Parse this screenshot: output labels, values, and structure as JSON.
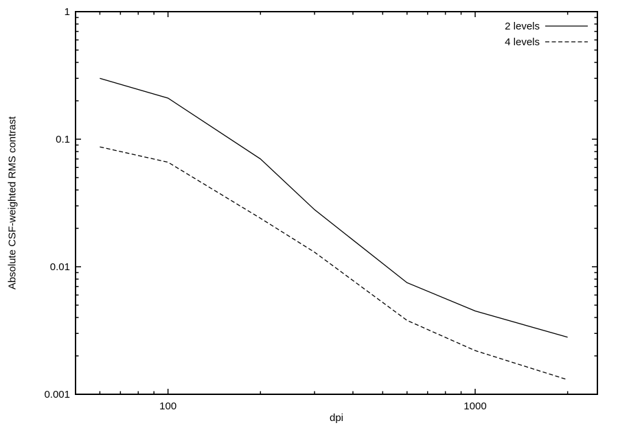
{
  "chart_data": {
    "type": "line",
    "title": "",
    "xlabel": "dpi",
    "ylabel": "Absolute CSF-weighted RMS contrast",
    "x_scale": "log",
    "y_scale": "log",
    "xlim": [
      50,
      2500
    ],
    "ylim": [
      0.001,
      1
    ],
    "grid": false,
    "x_major_ticks": [
      100,
      1000
    ],
    "x_tick_labels": [
      "100",
      "1000"
    ],
    "y_major_ticks": [
      1,
      0.1,
      0.01,
      0.001
    ],
    "y_tick_labels": [
      "1",
      "0.1",
      "0.01",
      "0.001"
    ],
    "legend_position": "top-right-inside",
    "x": [
      60,
      100,
      200,
      300,
      600,
      1000,
      2000
    ],
    "series": [
      {
        "name": "2 levels",
        "style": "solid",
        "color": "#000000",
        "values": [
          0.3,
          0.21,
          0.07,
          0.028,
          0.0075,
          0.0045,
          0.0028
        ]
      },
      {
        "name": "4 levels",
        "style": "dashed",
        "color": "#000000",
        "values": [
          0.087,
          0.066,
          0.024,
          0.013,
          0.0038,
          0.0022,
          0.0013
        ]
      }
    ]
  },
  "colors": {
    "background": "#ffffff",
    "axis": "#000000",
    "text": "#000000"
  }
}
